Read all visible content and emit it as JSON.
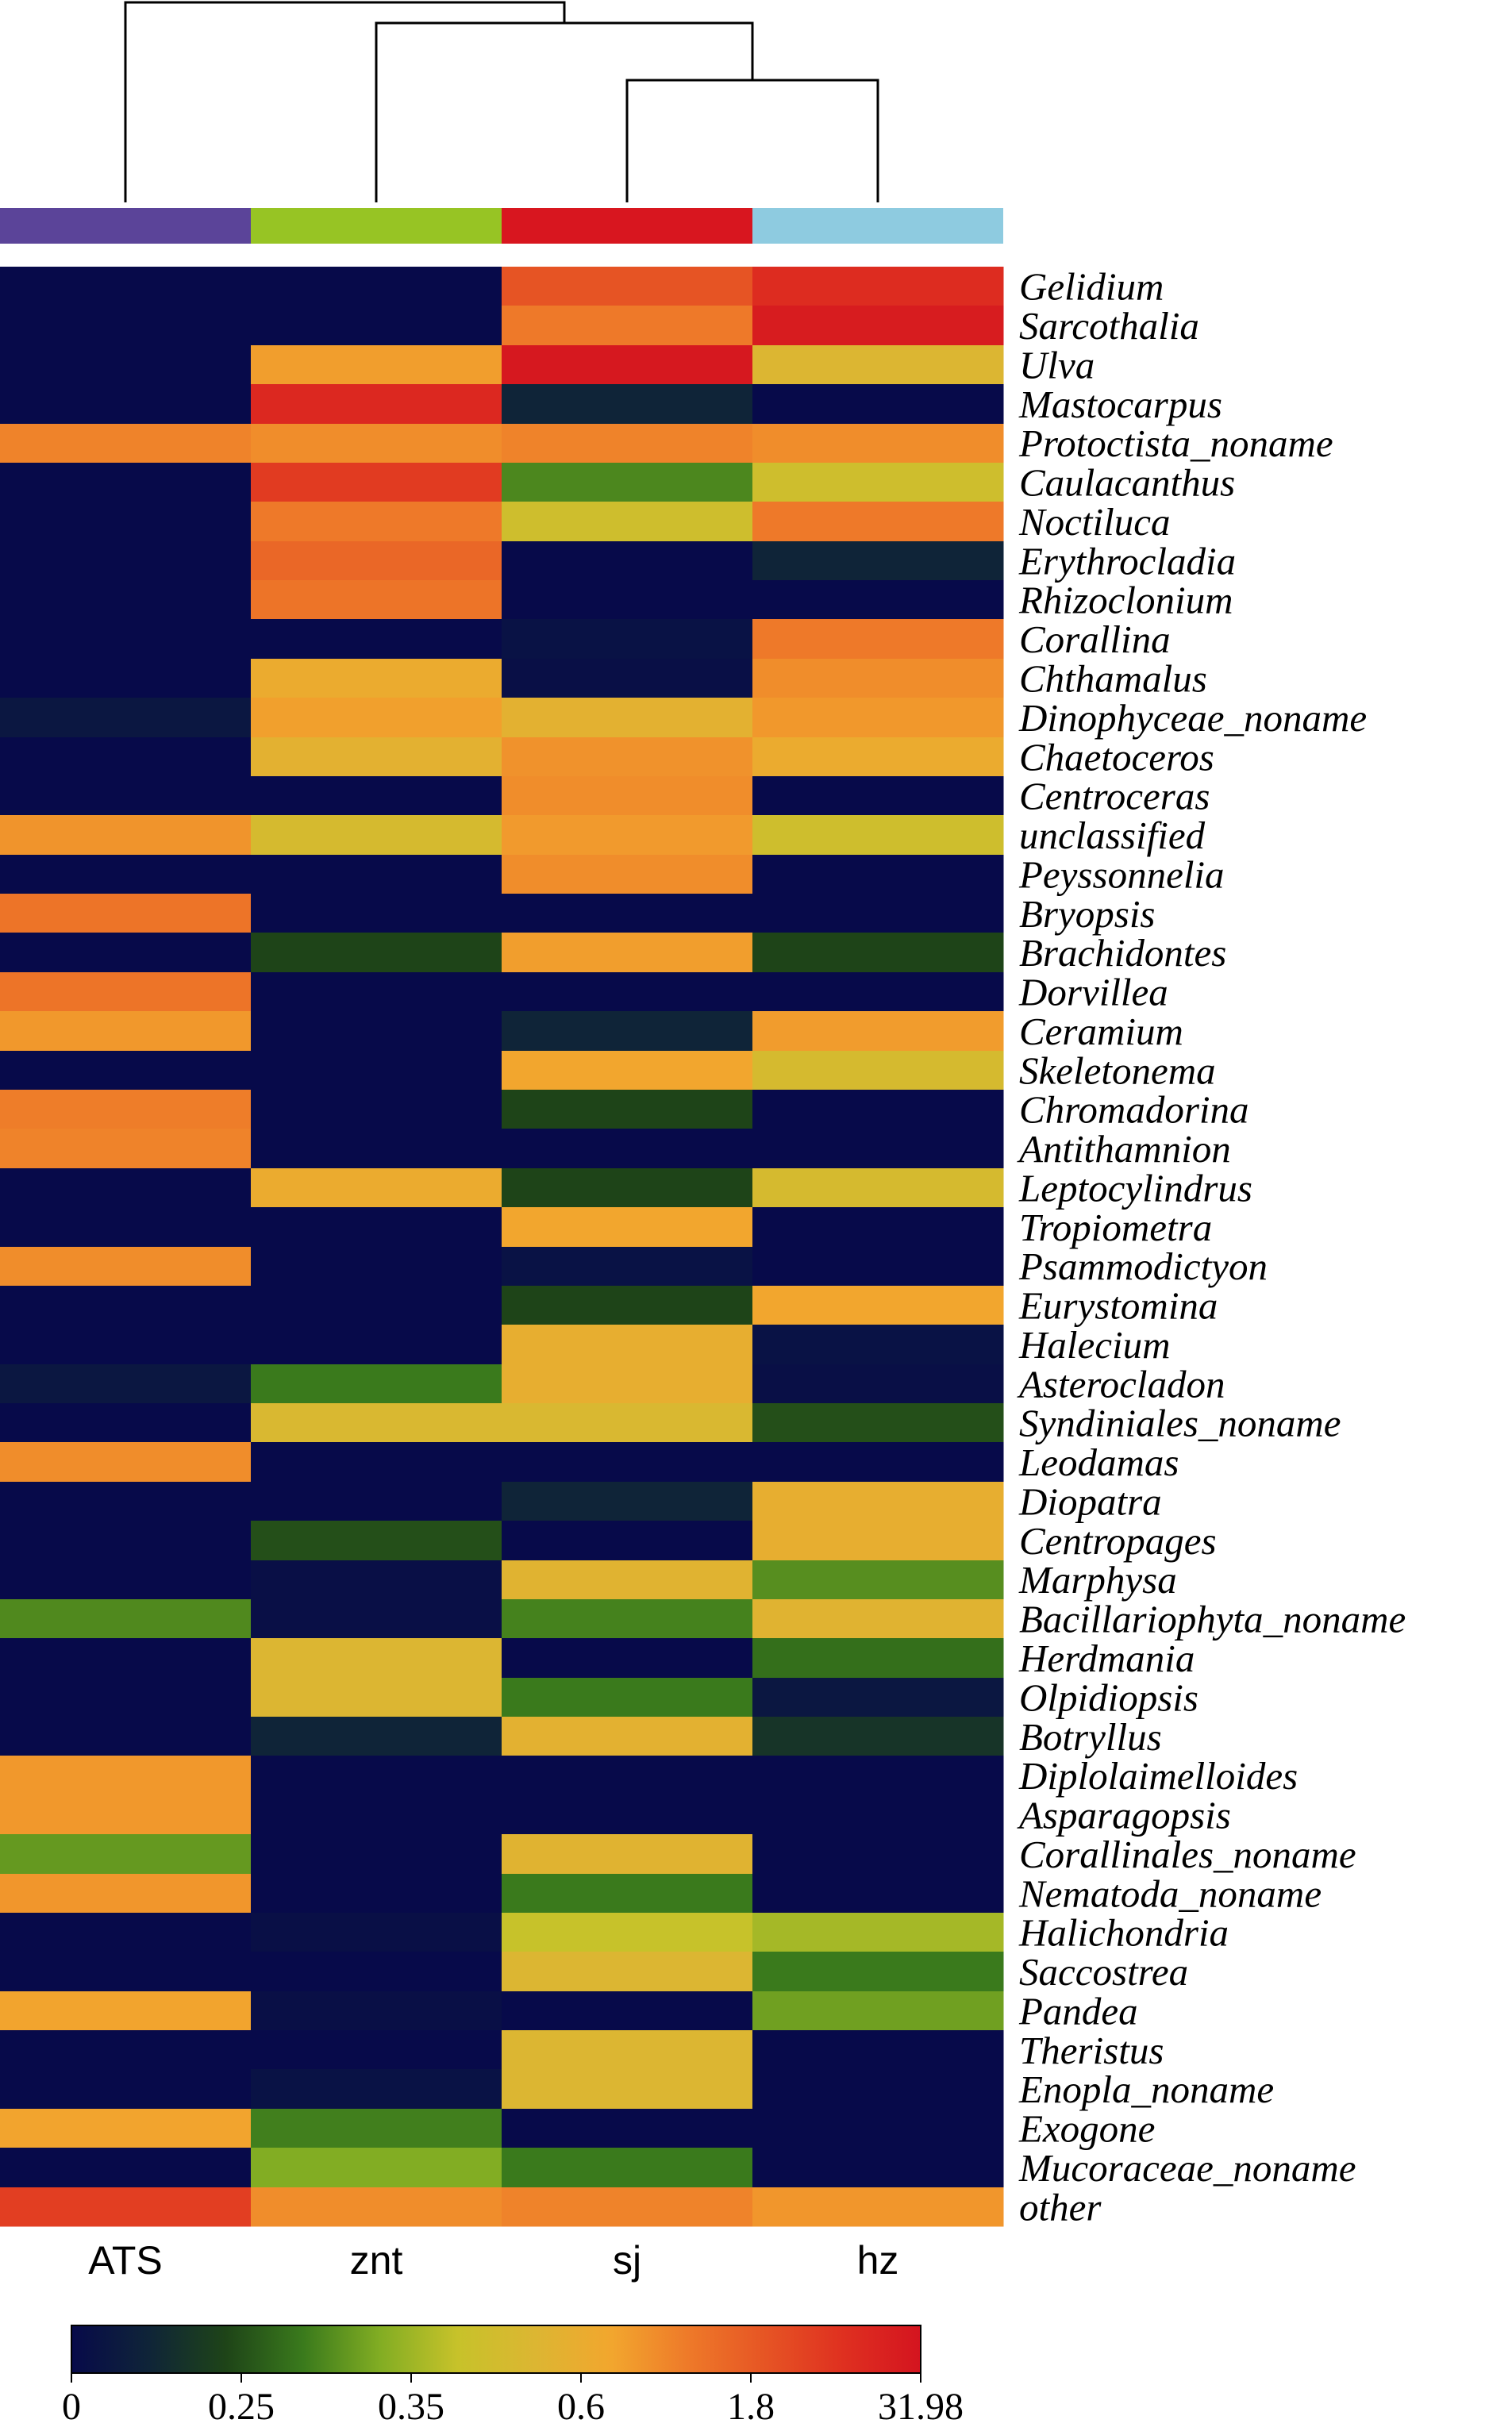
{
  "chart_data": {
    "type": "heatmap",
    "columns": [
      "ATS",
      "znt",
      "sj",
      "hz"
    ],
    "column_colors": [
      "#5b4499",
      "#97c424",
      "#d8161f",
      "#8ecbe0"
    ],
    "dendrogram": {
      "merges": [
        [
          "sj",
          "hz"
        ],
        [
          "znt",
          "sj+hz"
        ],
        [
          "ATS",
          "znt+sj+hz"
        ]
      ]
    },
    "rows": [
      "Gelidium",
      "Sarcothalia",
      "Ulva",
      "Mastocarpus",
      "Protoctista_noname",
      "Caulacanthus",
      "Noctiluca",
      "Erythrocladia",
      "Rhizoclonium",
      "Corallina",
      "Chthamalus",
      "Dinophyceae_noname",
      "Chaetoceros",
      "Centroceras",
      "unclassified",
      "Peyssonnelia",
      "Bryopsis",
      "Brachidontes",
      "Dorvillea",
      "Ceramium",
      "Skeletonema",
      "Chromadorina",
      "Antithamnion",
      "Leptocylindrus",
      "Tropiometra",
      "Psammodictyon",
      "Eurystomina",
      "Halecium",
      "Asterocladon",
      "Syndiniales_noname",
      "Leodamas",
      "Diopatra",
      "Centropages",
      "Marphysa",
      "Bacillariophyta_noname",
      "Herdmania",
      "Olpidiopsis",
      "Botryllus",
      "Diplolaimelloides",
      "Asparagopsis",
      "Corallinales_noname",
      "Nematoda_noname",
      "Halichondria",
      "Saccostrea",
      "Pandea",
      "Theristus",
      "Enopla_noname",
      "Exogone",
      "Mucoraceae_noname",
      "other"
    ],
    "values": [
      [
        0.0,
        0.0,
        8.0,
        20.0
      ],
      [
        0.0,
        0.0,
        4.0,
        28.0
      ],
      [
        0.0,
        2.2,
        30.0,
        1.2
      ],
      [
        0.0,
        22.0,
        0.1,
        0.0
      ],
      [
        3.5,
        3.0,
        3.5,
        3.0
      ],
      [
        0.0,
        15.0,
        0.35,
        0.8
      ],
      [
        0.0,
        4.0,
        0.8,
        4.0
      ],
      [
        0.0,
        6.0,
        0.0,
        0.1
      ],
      [
        0.0,
        4.5,
        0.0,
        0.0
      ],
      [
        0.0,
        0.0,
        0.03,
        4.0
      ],
      [
        0.0,
        1.6,
        0.02,
        3.0
      ],
      [
        0.05,
        2.1,
        1.4,
        2.5
      ],
      [
        0.0,
        1.4,
        2.8,
        1.6
      ],
      [
        0.0,
        0.0,
        3.0,
        0.0
      ],
      [
        2.7,
        1.0,
        2.4,
        0.8
      ],
      [
        0.0,
        0.0,
        3.0,
        0.0
      ],
      [
        4.5,
        0.0,
        0.0,
        0.0
      ],
      [
        0.0,
        0.2,
        2.2,
        0.2
      ],
      [
        4.5,
        0.0,
        0.0,
        0.0
      ],
      [
        2.5,
        0.0,
        0.1,
        2.3
      ],
      [
        0.0,
        0.0,
        1.8,
        1.0
      ],
      [
        3.8,
        0.0,
        0.2,
        0.0
      ],
      [
        3.5,
        0.0,
        0.0,
        0.0
      ],
      [
        0.0,
        1.6,
        0.2,
        1.0
      ],
      [
        0.0,
        0.0,
        1.8,
        0.0
      ],
      [
        3.0,
        0.0,
        0.03,
        0.0
      ],
      [
        0.0,
        0.0,
        0.2,
        1.8
      ],
      [
        0.0,
        0.0,
        1.5,
        0.03
      ],
      [
        0.05,
        0.3,
        1.5,
        0.02
      ],
      [
        0.0,
        1.1,
        1.1,
        0.22
      ],
      [
        3.0,
        0.0,
        0.0,
        0.0
      ],
      [
        0.0,
        0.0,
        0.1,
        1.5
      ],
      [
        0.0,
        0.22,
        0.0,
        1.5
      ],
      [
        0.0,
        0.02,
        1.3,
        0.38
      ],
      [
        0.36,
        0.02,
        0.33,
        1.3
      ],
      [
        0.0,
        1.2,
        0.0,
        0.28
      ],
      [
        0.0,
        1.2,
        0.3,
        0.05
      ],
      [
        0.0,
        0.1,
        1.4,
        0.15
      ],
      [
        2.5,
        0.0,
        0.0,
        0.0
      ],
      [
        2.5,
        0.0,
        0.0,
        0.0
      ],
      [
        0.42,
        0.0,
        1.3,
        0.0
      ],
      [
        2.6,
        0.0,
        0.3,
        0.0
      ],
      [
        0.0,
        0.02,
        0.6,
        0.55
      ],
      [
        0.0,
        0.0,
        1.2,
        0.3
      ],
      [
        1.9,
        0.02,
        0.0,
        0.45
      ],
      [
        0.0,
        0.0,
        1.2,
        0.0
      ],
      [
        0.0,
        0.03,
        1.2,
        0.0
      ],
      [
        1.9,
        0.32,
        0.0,
        0.0
      ],
      [
        0.0,
        0.5,
        0.3,
        0.0
      ],
      [
        14.0,
        3.0,
        3.5,
        2.6
      ]
    ],
    "colorbar": {
      "ticks": [
        "0",
        "0.25",
        "0.35",
        "0.6",
        "1.8",
        "31.98"
      ],
      "tick_values": [
        0,
        0.25,
        0.35,
        0.6,
        1.8,
        31.98
      ],
      "stops": [
        {
          "v": 0.0,
          "c": "#070a4a"
        },
        {
          "v": 0.1,
          "c": "#0f2438"
        },
        {
          "v": 0.2,
          "c": "#1e4418"
        },
        {
          "v": 0.3,
          "c": "#3a7a1c"
        },
        {
          "v": 0.5,
          "c": "#82ad23"
        },
        {
          "v": 0.6,
          "c": "#c7c22a"
        },
        {
          "v": 1.2,
          "c": "#dcb632"
        },
        {
          "v": 1.8,
          "c": "#f2a62e"
        },
        {
          "v": 4.0,
          "c": "#ee7929"
        },
        {
          "v": 8.0,
          "c": "#e65424"
        },
        {
          "v": 18.0,
          "c": "#df3020"
        },
        {
          "v": 31.98,
          "c": "#d4141f"
        }
      ]
    }
  }
}
